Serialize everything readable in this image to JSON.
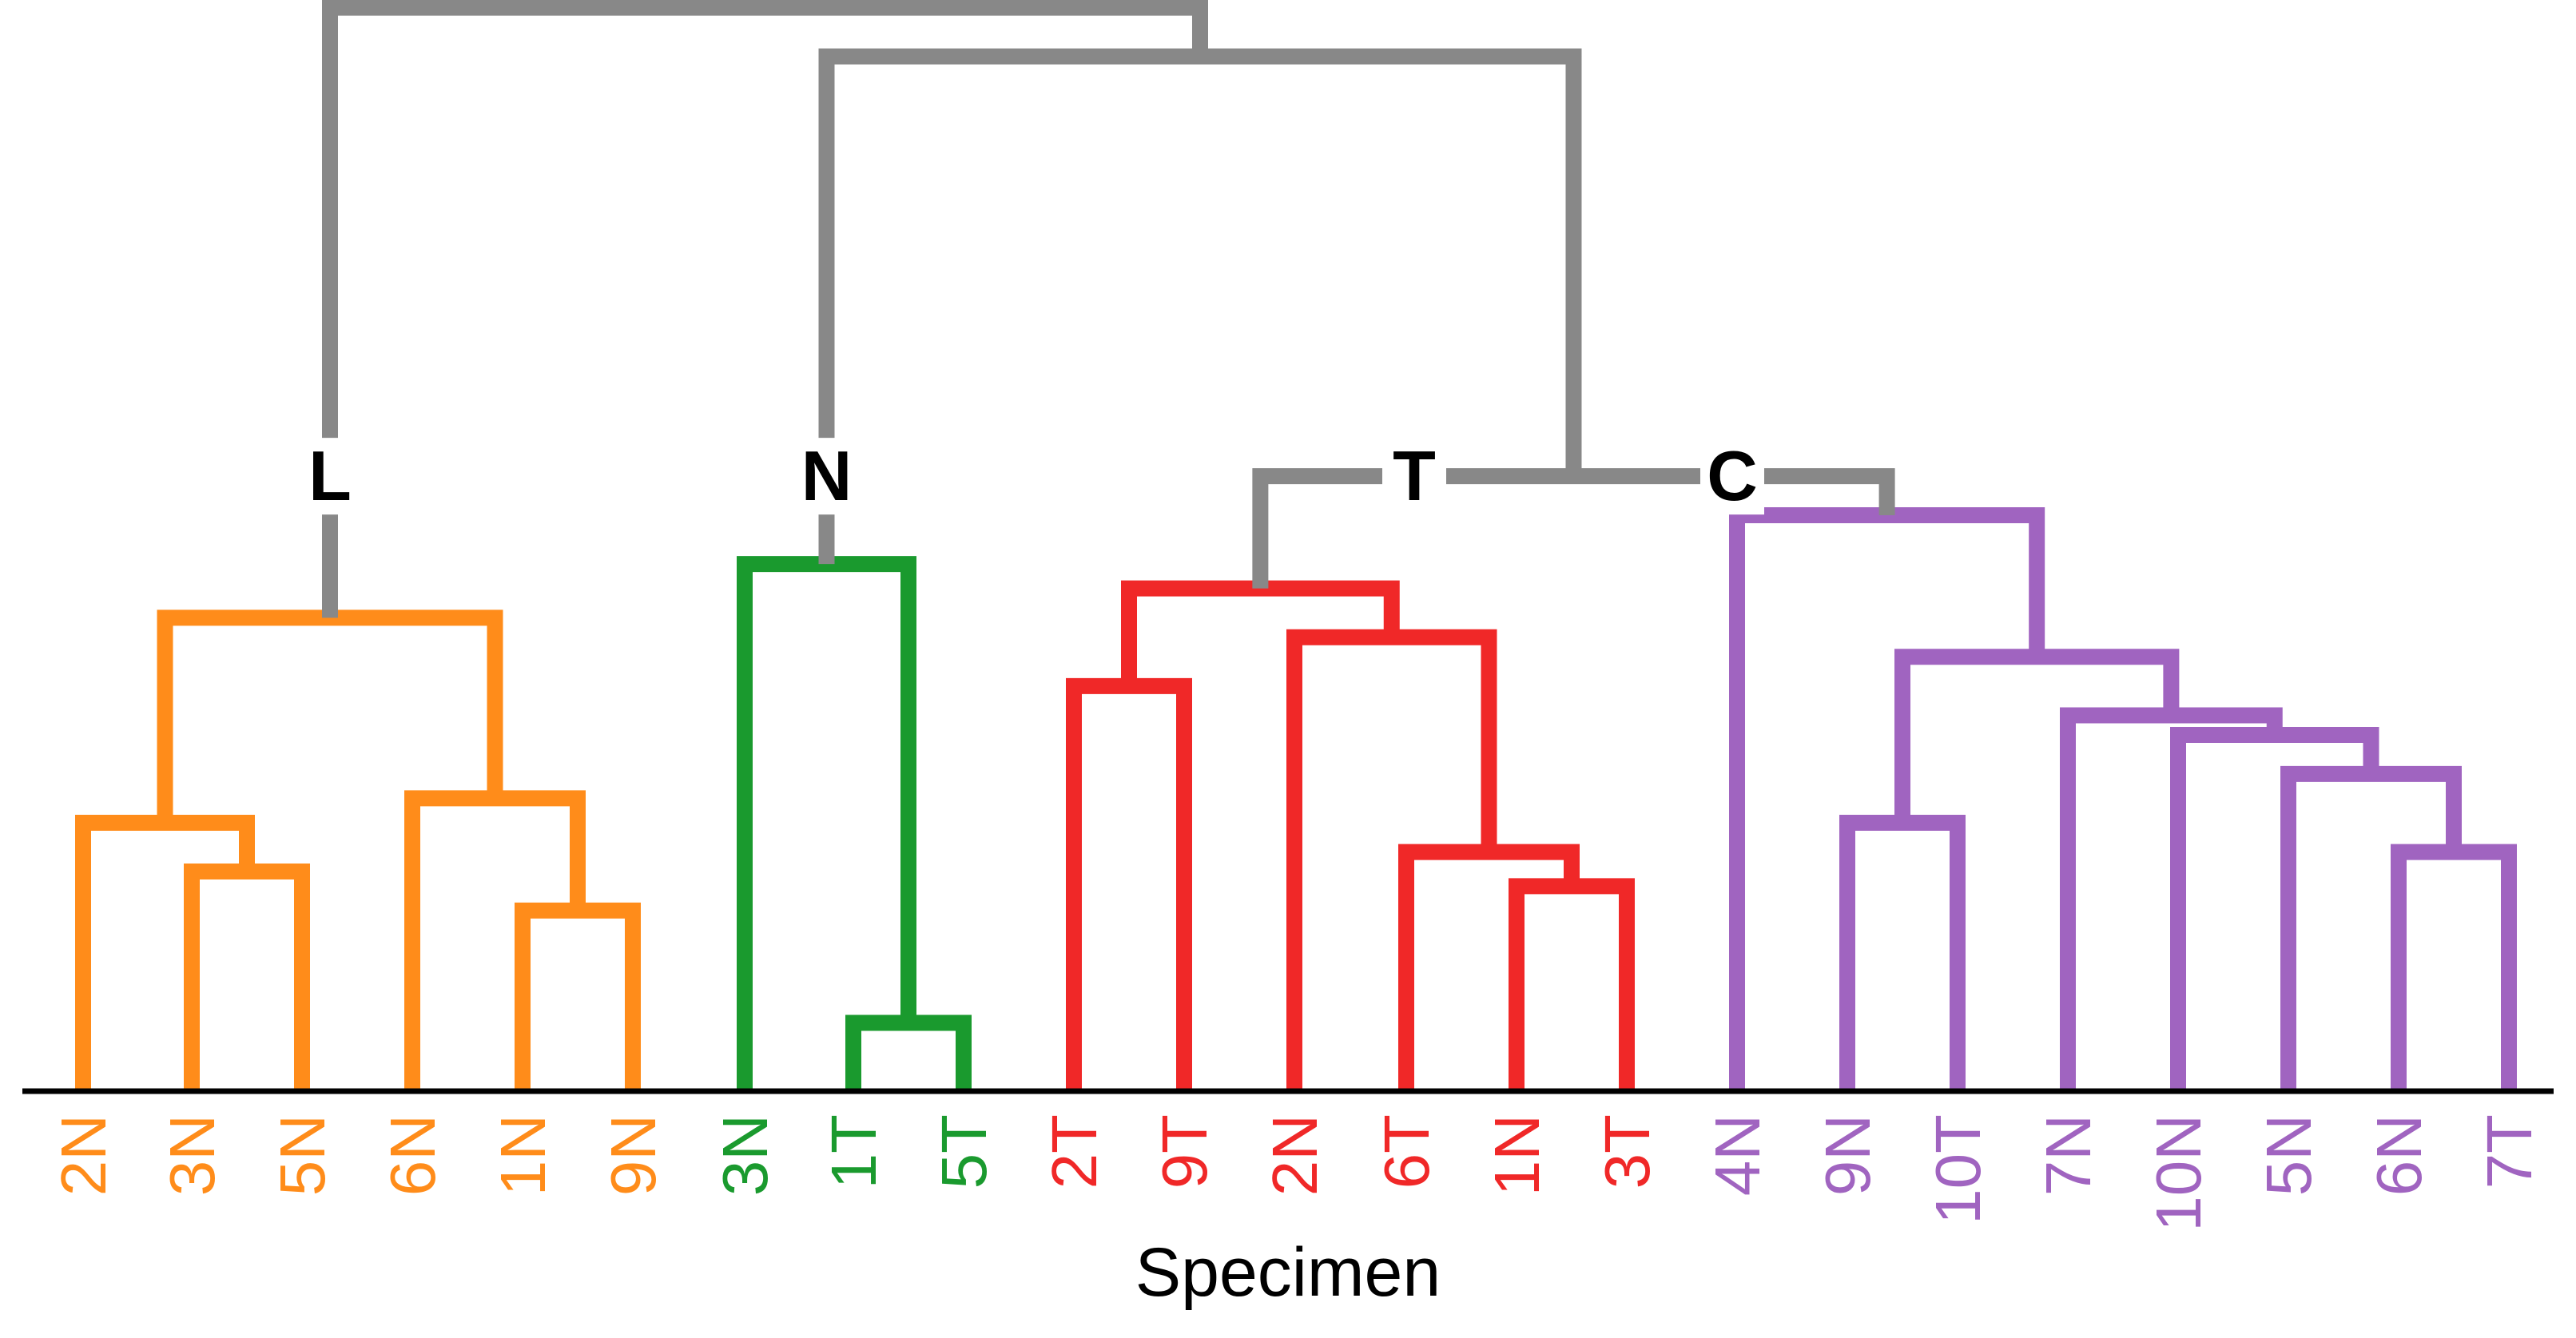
{
  "chart_data": {
    "type": "dendrogram",
    "title": "",
    "xlabel": "Specimen",
    "ylabel": "",
    "colors": {
      "L": "#FF8C1A",
      "N": "#1A9A2E",
      "T": "#F02828",
      "C": "#A064C0",
      "trunk": "#888888",
      "axis": "#000000"
    },
    "leaves": [
      {
        "label": "2N",
        "cluster": "L"
      },
      {
        "label": "3N",
        "cluster": "L"
      },
      {
        "label": "5N",
        "cluster": "L"
      },
      {
        "label": "6N",
        "cluster": "L"
      },
      {
        "label": "1N",
        "cluster": "L"
      },
      {
        "label": "9N",
        "cluster": "L"
      },
      {
        "label": "3N",
        "cluster": "N"
      },
      {
        "label": "1T",
        "cluster": "N"
      },
      {
        "label": "5T",
        "cluster": "N"
      },
      {
        "label": "2T",
        "cluster": "T"
      },
      {
        "label": "9T",
        "cluster": "T"
      },
      {
        "label": "2N",
        "cluster": "T"
      },
      {
        "label": "6T",
        "cluster": "T"
      },
      {
        "label": "1N",
        "cluster": "T"
      },
      {
        "label": "3T",
        "cluster": "T"
      },
      {
        "label": "4N",
        "cluster": "C"
      },
      {
        "label": "9N",
        "cluster": "C"
      },
      {
        "label": "10T",
        "cluster": "C"
      },
      {
        "label": "7N",
        "cluster": "C"
      },
      {
        "label": "10N",
        "cluster": "C"
      },
      {
        "label": "5N",
        "cluster": "C"
      },
      {
        "label": "6N",
        "cluster": "C"
      },
      {
        "label": "7T",
        "cluster": "C"
      }
    ],
    "cluster_labels": [
      "L",
      "N",
      "T",
      "C"
    ],
    "merges": [
      {
        "id": "m1",
        "a": "leaf1",
        "b": "leaf2",
        "height": 0.45,
        "color": "L"
      },
      {
        "id": "m2",
        "a": "leaf0",
        "b": "m1",
        "height": 0.55,
        "color": "L"
      },
      {
        "id": "m3",
        "a": "leaf4",
        "b": "leaf5",
        "height": 0.37,
        "color": "L"
      },
      {
        "id": "m4",
        "a": "leaf3",
        "b": "m3",
        "height": 0.6,
        "color": "L"
      },
      {
        "id": "m5",
        "a": "m2",
        "b": "m4",
        "height": 0.97,
        "color": "L"
      },
      {
        "id": "m6",
        "a": "leaf7",
        "b": "leaf8",
        "height": 0.14,
        "color": "N"
      },
      {
        "id": "m7",
        "a": "leaf6",
        "b": "m6",
        "height": 1.08,
        "color": "N"
      },
      {
        "id": "m8",
        "a": "leaf9",
        "b": "leaf10",
        "height": 0.83,
        "color": "T"
      },
      {
        "id": "m9",
        "a": "leaf13",
        "b": "leaf14",
        "height": 0.42,
        "color": "T"
      },
      {
        "id": "m10",
        "a": "leaf12",
        "b": "m9",
        "height": 0.49,
        "color": "T"
      },
      {
        "id": "m11",
        "a": "leaf11",
        "b": "m10",
        "height": 0.93,
        "color": "T"
      },
      {
        "id": "m12",
        "a": "m8",
        "b": "m11",
        "height": 1.03,
        "color": "T"
      },
      {
        "id": "m13",
        "a": "leaf16",
        "b": "leaf17",
        "height": 0.55,
        "color": "C"
      },
      {
        "id": "m14",
        "a": "leaf21",
        "b": "leaf22",
        "height": 0.49,
        "color": "C"
      },
      {
        "id": "m15",
        "a": "leaf20",
        "b": "m14",
        "height": 0.65,
        "color": "C"
      },
      {
        "id": "m16",
        "a": "leaf19",
        "b": "m15",
        "height": 0.73,
        "color": "C"
      },
      {
        "id": "m17",
        "a": "leaf18",
        "b": "m16",
        "height": 0.77,
        "color": "C"
      },
      {
        "id": "m18",
        "a": "m13",
        "b": "m17",
        "height": 0.89,
        "color": "C"
      },
      {
        "id": "m19",
        "a": "leaf15",
        "b": "m18",
        "height": 1.18,
        "color": "C"
      },
      {
        "id": "m20",
        "a": "m12",
        "b": "m19",
        "height": 1.26,
        "color": "trunk"
      },
      {
        "id": "m21",
        "a": "m7",
        "b": "m20",
        "height": 2.12,
        "color": "trunk"
      },
      {
        "id": "m22",
        "a": "m5",
        "b": "m21",
        "height": 2.22,
        "color": "trunk"
      }
    ]
  }
}
